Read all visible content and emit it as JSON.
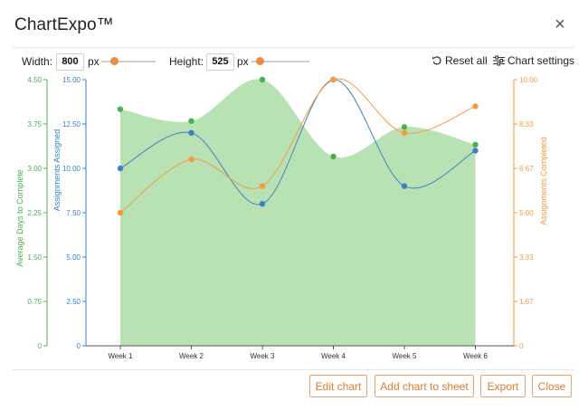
{
  "dialog": {
    "title": "ChartExpo™",
    "close_icon": "close-icon"
  },
  "toolbar": {
    "width_label": "Width:",
    "width_value": "800",
    "width_unit": "px",
    "height_label": "Height:",
    "height_value": "525",
    "height_unit": "px",
    "reset_label": "Reset all",
    "reset_icon": "reset-icon",
    "settings_label": "Chart settings",
    "settings_icon": "sliders-icon",
    "slider_color": "#f08a3c"
  },
  "footer": {
    "edit_label": "Edit chart",
    "add_label": "Add chart to sheet",
    "export_label": "Export",
    "close_label": "Close",
    "button_color": "#e07b2e"
  },
  "chart_data": {
    "type": "area",
    "categories": [
      "Week 1",
      "Week 2",
      "Week 3",
      "Week 4",
      "Week 5",
      "Week 6"
    ],
    "series": [
      {
        "name": "Average Days to Complete",
        "axis": "left-outer",
        "type": "area",
        "color": "#4caf50",
        "fill": "#b8e2b4",
        "values": [
          4.0,
          3.8,
          4.5,
          3.2,
          3.7,
          3.4
        ]
      },
      {
        "name": "Assignments Assigned",
        "axis": "left-inner",
        "type": "line",
        "color": "#3b82c4",
        "values": [
          10,
          12,
          8,
          15,
          9,
          11
        ]
      },
      {
        "name": "Assignments Completed",
        "axis": "right",
        "type": "line",
        "color": "#f59a42",
        "values": [
          5,
          7,
          6,
          10,
          8,
          9
        ]
      }
    ],
    "axes": {
      "left_outer": {
        "label": "Average Days to Complete",
        "color": "#4caf50",
        "range": [
          0,
          4.5
        ],
        "ticks": [
          "0",
          "0.75",
          "1.50",
          "2.25",
          "3.00",
          "3.75",
          "4.50"
        ]
      },
      "left_inner": {
        "label": "Assignments Assigned",
        "color": "#3b82c4",
        "range": [
          0,
          15
        ],
        "ticks": [
          "0",
          "2.50",
          "5.00",
          "7.50",
          "10.00",
          "12.50",
          "15.00"
        ]
      },
      "right": {
        "label": "Assignments Completed",
        "color": "#f59a42",
        "range": [
          0,
          10
        ],
        "ticks": [
          "0",
          "1.67",
          "3.33",
          "5.00",
          "6.67",
          "8.33",
          "10.00"
        ]
      }
    },
    "grid": false
  }
}
